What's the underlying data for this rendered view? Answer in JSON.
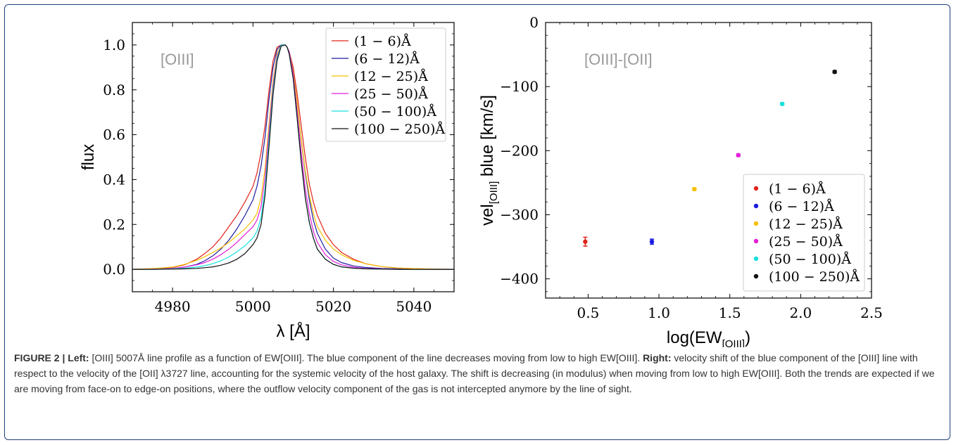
{
  "chart_data": [
    {
      "type": "line",
      "annotation": "[OIII]",
      "xlabel": "λ [Å]",
      "ylabel": "flux",
      "xlim": [
        4970,
        5050
      ],
      "ylim": [
        -0.1,
        1.1
      ],
      "xticks": [
        4980,
        5000,
        5020,
        5040
      ],
      "yticks": [
        0.0,
        0.2,
        0.4,
        0.6,
        0.8,
        1.0
      ],
      "x": [
        4970,
        4975,
        4980,
        4983,
        4986,
        4988,
        4990,
        4992,
        4994,
        4996,
        4998,
        5000,
        5001,
        5002,
        5003,
        5004,
        5005,
        5006,
        5007,
        5008,
        5008.5,
        5009,
        5010,
        5011,
        5012,
        5013,
        5014,
        5015,
        5016,
        5018,
        5020,
        5022,
        5025,
        5028,
        5032,
        5036,
        5040,
        5045,
        5050
      ],
      "series": [
        {
          "name": "(1 − 6)Å",
          "color": "#e0241b",
          "values": [
            0.0,
            0.002,
            0.008,
            0.02,
            0.045,
            0.07,
            0.1,
            0.14,
            0.19,
            0.24,
            0.3,
            0.37,
            0.43,
            0.52,
            0.64,
            0.8,
            0.93,
            0.99,
            1.0,
            1.0,
            0.99,
            0.97,
            0.9,
            0.78,
            0.64,
            0.5,
            0.38,
            0.3,
            0.24,
            0.16,
            0.11,
            0.075,
            0.045,
            0.025,
            0.012,
            0.006,
            0.003,
            0.001,
            0.0
          ]
        },
        {
          "name": "(6 − 12)Å",
          "color": "#1c1ca0",
          "values": [
            0.0,
            0.001,
            0.004,
            0.01,
            0.022,
            0.038,
            0.06,
            0.09,
            0.13,
            0.18,
            0.24,
            0.31,
            0.37,
            0.46,
            0.59,
            0.76,
            0.9,
            0.98,
            1.0,
            1.0,
            0.99,
            0.97,
            0.88,
            0.74,
            0.58,
            0.43,
            0.31,
            0.22,
            0.16,
            0.09,
            0.05,
            0.03,
            0.015,
            0.008,
            0.004,
            0.002,
            0.001,
            0.0,
            0.0
          ]
        },
        {
          "name": "(12 − 25)Å",
          "color": "#f5c000",
          "values": [
            0.0,
            0.003,
            0.01,
            0.022,
            0.04,
            0.056,
            0.075,
            0.095,
            0.12,
            0.15,
            0.18,
            0.22,
            0.25,
            0.32,
            0.45,
            0.65,
            0.84,
            0.96,
            1.0,
            1.0,
            0.99,
            0.97,
            0.88,
            0.74,
            0.58,
            0.44,
            0.33,
            0.25,
            0.19,
            0.13,
            0.09,
            0.065,
            0.04,
            0.025,
            0.012,
            0.006,
            0.003,
            0.001,
            0.0
          ]
        },
        {
          "name": "(25 − 50)Å",
          "color": "#e21fd8",
          "values": [
            0.0,
            0.001,
            0.004,
            0.01,
            0.02,
            0.03,
            0.045,
            0.065,
            0.09,
            0.12,
            0.155,
            0.19,
            0.22,
            0.28,
            0.41,
            0.62,
            0.82,
            0.95,
            1.0,
            1.0,
            0.99,
            0.97,
            0.87,
            0.7,
            0.52,
            0.36,
            0.25,
            0.17,
            0.12,
            0.065,
            0.035,
            0.02,
            0.009,
            0.004,
            0.002,
            0.001,
            0.0,
            0.0,
            0.0
          ]
        },
        {
          "name": "(50 − 100)Å",
          "color": "#19e0e0",
          "values": [
            0.0,
            0.0,
            0.002,
            0.005,
            0.01,
            0.016,
            0.025,
            0.038,
            0.055,
            0.078,
            0.105,
            0.14,
            0.17,
            0.23,
            0.36,
            0.58,
            0.8,
            0.94,
            1.0,
            1.0,
            0.99,
            0.96,
            0.85,
            0.67,
            0.48,
            0.32,
            0.21,
            0.14,
            0.09,
            0.045,
            0.022,
            0.011,
            0.005,
            0.002,
            0.001,
            0.0,
            0.0,
            0.0,
            0.0
          ]
        },
        {
          "name": "(100 − 250)Å",
          "color": "#111111",
          "values": [
            0.0,
            0.0,
            0.001,
            0.002,
            0.004,
            0.007,
            0.011,
            0.018,
            0.028,
            0.045,
            0.07,
            0.11,
            0.14,
            0.2,
            0.33,
            0.55,
            0.78,
            0.93,
            0.995,
            1.0,
            0.99,
            0.96,
            0.85,
            0.67,
            0.48,
            0.32,
            0.21,
            0.14,
            0.09,
            0.045,
            0.022,
            0.011,
            0.005,
            0.002,
            0.001,
            0.0,
            0.0,
            0.0,
            0.0
          ]
        }
      ]
    },
    {
      "type": "scatter",
      "annotation": "[OIII]-[OII]",
      "xlabel_main": "log(EW",
      "xlabel_sub": "[OIII]",
      "xlabel_end": ")",
      "ylabel_main": "vel",
      "ylabel_sub": "[OIII]",
      "ylabel_end": " blue [km/s]",
      "xlim": [
        0.2,
        2.5
      ],
      "ylim": [
        -430,
        0
      ],
      "xticks": [
        0.5,
        1.0,
        1.5,
        2.0,
        2.5
      ],
      "yticks": [
        0,
        -100,
        -200,
        -300,
        -400
      ],
      "legend": "lower-right",
      "points": [
        {
          "name": "(1 − 6)Å",
          "color": "#e0241b",
          "x": 0.48,
          "y": -342,
          "err": 7
        },
        {
          "name": "(6 − 12)Å",
          "color": "#1a1ae0",
          "x": 0.95,
          "y": -342,
          "err": 4
        },
        {
          "name": "(12 − 25)Å",
          "color": "#f5c000",
          "x": 1.25,
          "y": -260,
          "err": 2
        },
        {
          "name": "(25 − 50)Å",
          "color": "#e21fd8",
          "x": 1.56,
          "y": -207,
          "err": 2
        },
        {
          "name": "(50 − 100)Å",
          "color": "#19e0e0",
          "x": 1.87,
          "y": -127,
          "err": 2
        },
        {
          "name": "(100 − 250)Å",
          "color": "#111111",
          "x": 2.24,
          "y": -77,
          "err": 2
        }
      ]
    }
  ],
  "caption": {
    "figure_label": "FIGURE 2 | ",
    "left_label": "Left:",
    "left_text": " [OIII] 5007Å  line profile as a function of EW[OIII]. The blue component of the line decreases moving from low to high EW[OIII]. ",
    "right_label": "Right:",
    "right_text": " velocity shift of the blue component of the [OIII] line with respect to the velocity of the [OII] λ3727 line, accounting for the systemic velocity of the host galaxy. The shift is decreasing (in modulus) when moving from low to high EW[OIII]. Both the trends are expected if we are moving from face-on to edge-on positions, where the outflow velocity component of the gas is not intercepted anymore by the line of sight."
  }
}
